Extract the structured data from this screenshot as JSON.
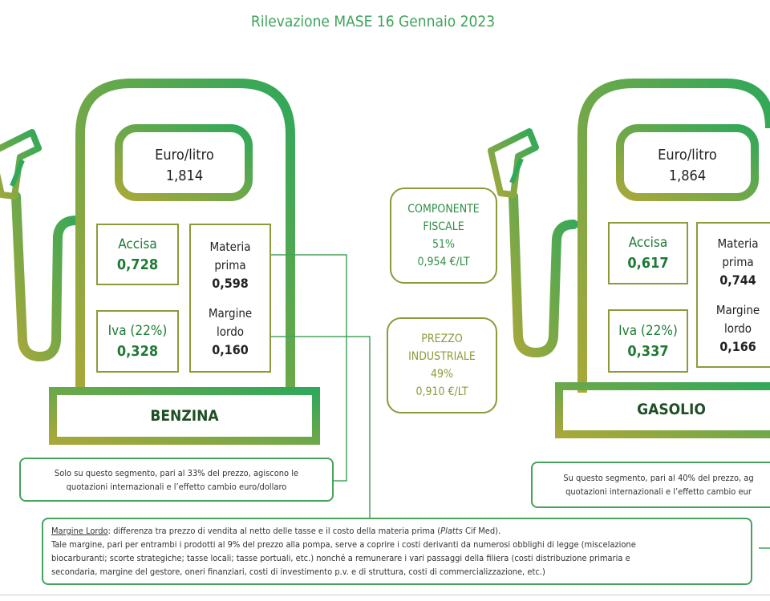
{
  "title": "Rilevazione MASE 16 Gennaio 2023",
  "colors": {
    "green": "#3ea35a",
    "olive": "#8d9a3a",
    "dark_green": "#1f7a34"
  },
  "benzina": {
    "name": "BENZINA",
    "price_label": "Euro/litro",
    "price_value": "1,814",
    "accisa_label": "Accisa",
    "accisa_value": "0,728",
    "iva_label": "Iva (22%)",
    "iva_value": "0,328",
    "materia_label_1": "Materia",
    "materia_label_2": "prima",
    "materia_value": "0,598",
    "margine_label_1": "Margine",
    "margine_label_2": "lordo",
    "margine_value": "0,160"
  },
  "gasolio": {
    "name": "GASOLIO",
    "price_label": "Euro/litro",
    "price_value": "1,864",
    "accisa_label": "Accisa",
    "accisa_value": "0,617",
    "iva_label": "Iva (22%)",
    "iva_value": "0,337",
    "materia_label_1": "Materia",
    "materia_label_2": "prima",
    "materia_value": "0,744",
    "margine_label_1": "Margine",
    "margine_label_2": "lordo",
    "margine_value": "0,166"
  },
  "componente_fiscale": {
    "line1": "COMPONENTE",
    "line2": "FISCALE",
    "percent": "51%",
    "value": "0,954 €/LT"
  },
  "prezzo_industriale": {
    "line1": "PREZZO",
    "line2": "INDUSTRIALE",
    "percent": "49%",
    "value": "0,910 €/LT"
  },
  "note_benzina": {
    "line1": "Solo su questo segmento, pari al 33% del prezzo, agiscono le",
    "line2": "quotazioni internazionali e l’effetto cambio euro/dollaro"
  },
  "note_gasolio": {
    "line1": "Su questo segmento, pari al 40% del prezzo, ag",
    "line2": "quotazioni internazionali e l’effetto cambio eur"
  },
  "margine_note": {
    "term": "Margine Lordo",
    "def_prefix": ": differenza tra prezzo di vendita al netto delle tasse e il costo della materia prima (",
    "platts": "Platts",
    "def_suffix": " Cif Med).",
    "body1": "Tale margine, pari  per entrambi i prodotti al 9% del prezzo alla pompa, serve a coprire i costi derivanti da numerosi obblighi di legge (miscelazione",
    "body2": "biocarburanti; scorte strategiche; tasse locali; tasse portuali, etc.) nonché a remunerare i vari passaggi della filiera (costi distribuzione primaria e",
    "body3": "secondaria, margine del gestore, oneri finanziari, costi di investimento p.v. e di struttura, costi di commercializzazione, etc.)"
  }
}
